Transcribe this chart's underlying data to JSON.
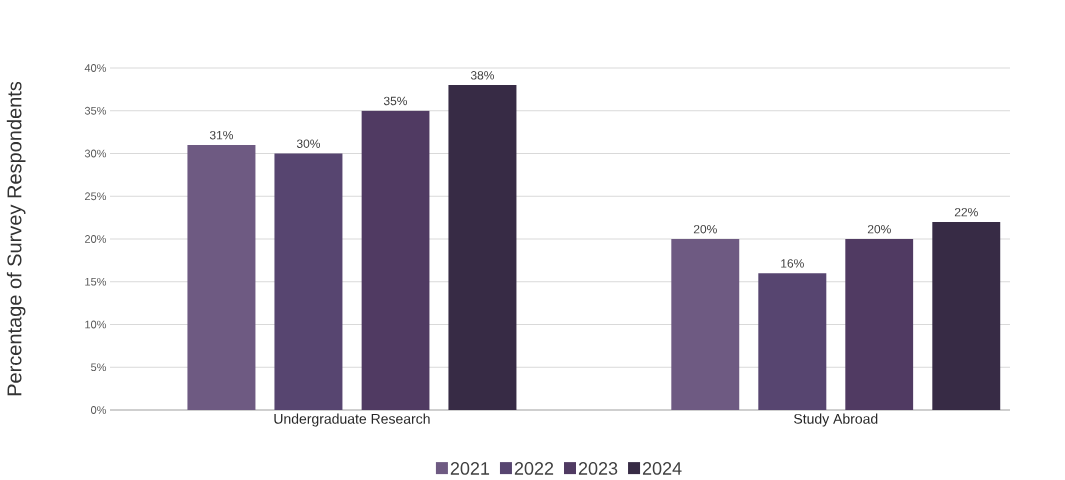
{
  "chart_data": {
    "type": "bar",
    "ylabel": "Percentage of Survey Respondents",
    "categories": [
      "Undergraduate Research",
      "Study Abroad"
    ],
    "series": [
      {
        "name": "2021",
        "color": "#6e5a82",
        "values": [
          31,
          20
        ],
        "value_labels": [
          "31%",
          "20%"
        ]
      },
      {
        "name": "2022",
        "color": "#574570",
        "values": [
          30,
          16
        ],
        "value_labels": [
          "30%",
          "16%"
        ]
      },
      {
        "name": "2023",
        "color": "#503a62",
        "values": [
          35,
          20
        ],
        "value_labels": [
          "35%",
          "20%"
        ]
      },
      {
        "name": "2024",
        "color": "#372b45",
        "values": [
          38,
          22
        ],
        "value_labels": [
          "38%",
          "22%"
        ]
      }
    ],
    "ylim": [
      0,
      40
    ],
    "yticks": [
      {
        "value": 0,
        "label": "0%"
      },
      {
        "value": 5,
        "label": "5%"
      },
      {
        "value": 10,
        "label": "10%"
      },
      {
        "value": 15,
        "label": "15%"
      },
      {
        "value": 20,
        "label": "20%"
      },
      {
        "value": 25,
        "label": "25%"
      },
      {
        "value": 30,
        "label": "30%"
      },
      {
        "value": 35,
        "label": "35%"
      },
      {
        "value": 40,
        "label": "40%"
      }
    ],
    "grid": "y",
    "legend": "bottom"
  }
}
